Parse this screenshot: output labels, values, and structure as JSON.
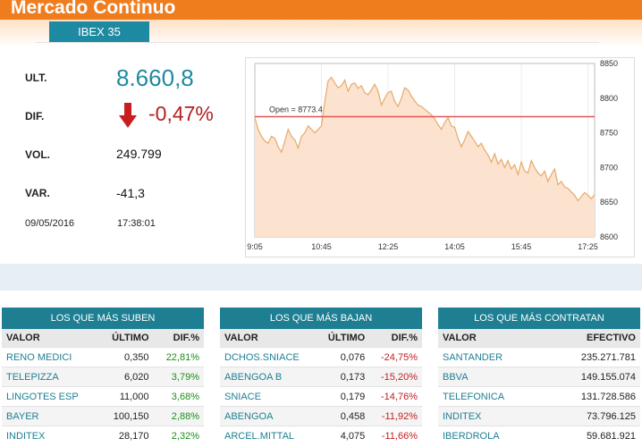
{
  "header": {
    "title": "Mercado Continuo",
    "tab": "IBEX 35"
  },
  "quote": {
    "labels": {
      "last": "ULT.",
      "dif": "DIF.",
      "vol": "VOL.",
      "var": "VAR."
    },
    "last": "8.660,8",
    "dif": "-0,47%",
    "vol": "249.799",
    "var": "-41,3",
    "date": "09/05/2016",
    "time": "17:38:01",
    "colors": {
      "accent": "#1e8aa1",
      "negative": "#b32020",
      "brand": "#f07d1d"
    }
  },
  "chart_data": {
    "type": "area",
    "open_label": "Open = 8773.4",
    "open_value": 8773.4,
    "ylim": [
      8600,
      8850
    ],
    "yticks": [
      "8850",
      "8800",
      "8750",
      "8700",
      "8650",
      "8600"
    ],
    "ytick_values": [
      8850,
      8800,
      8750,
      8700,
      8650,
      8600
    ],
    "xticks": [
      "9:05",
      "10:45",
      "12:25",
      "14:05",
      "15:45",
      "17:25"
    ],
    "xtick_values": [
      0,
      100,
      200,
      300,
      400,
      500
    ],
    "x": [
      0,
      5,
      10,
      15,
      20,
      25,
      30,
      35,
      40,
      45,
      50,
      55,
      60,
      65,
      70,
      75,
      80,
      85,
      90,
      95,
      100,
      105,
      110,
      115,
      120,
      125,
      130,
      135,
      140,
      145,
      150,
      155,
      160,
      165,
      170,
      175,
      180,
      185,
      190,
      195,
      200,
      205,
      210,
      215,
      220,
      225,
      230,
      235,
      240,
      245,
      250,
      255,
      260,
      265,
      270,
      275,
      280,
      285,
      290,
      295,
      300,
      305,
      310,
      315,
      320,
      325,
      330,
      335,
      340,
      345,
      350,
      355,
      360,
      365,
      370,
      375,
      380,
      385,
      390,
      395,
      400,
      405,
      410,
      415,
      420,
      425,
      430,
      435,
      440,
      445,
      450,
      455,
      460,
      465,
      470,
      475,
      480,
      485,
      490,
      495,
      500,
      505,
      510
    ],
    "values": [
      8772,
      8755,
      8745,
      8738,
      8735,
      8745,
      8742,
      8730,
      8722,
      8738,
      8755,
      8745,
      8740,
      8728,
      8745,
      8750,
      8760,
      8755,
      8750,
      8755,
      8760,
      8795,
      8825,
      8830,
      8822,
      8815,
      8818,
      8826,
      8810,
      8820,
      8822,
      8814,
      8818,
      8808,
      8805,
      8812,
      8820,
      8810,
      8790,
      8800,
      8808,
      8810,
      8795,
      8788,
      8800,
      8815,
      8812,
      8803,
      8796,
      8790,
      8788,
      8784,
      8780,
      8776,
      8770,
      8762,
      8755,
      8765,
      8772,
      8760,
      8758,
      8742,
      8730,
      8740,
      8752,
      8745,
      8738,
      8730,
      8735,
      8725,
      8718,
      8708,
      8720,
      8705,
      8712,
      8700,
      8710,
      8698,
      8704,
      8690,
      8708,
      8695,
      8692,
      8710,
      8700,
      8692,
      8688,
      8695,
      8680,
      8690,
      8698,
      8675,
      8680,
      8672,
      8670,
      8665,
      8660,
      8652,
      8658,
      8664,
      8660,
      8655,
      8661
    ]
  },
  "tables": [
    {
      "title": "LOS QUE MÁS SUBEN",
      "headers": [
        "VALOR",
        "ÚLTIMO",
        "DIF.%"
      ],
      "rows": [
        [
          "RENO MEDICI",
          "0,350",
          "22,81%"
        ],
        [
          "TELEPIZZA",
          "6,020",
          "3,79%"
        ],
        [
          "LINGOTES ESP",
          "11,000",
          "3,68%"
        ],
        [
          "BAYER",
          "100,150",
          "2,88%"
        ],
        [
          "INDITEX",
          "28,170",
          "2,32%"
        ]
      ]
    },
    {
      "title": "LOS QUE MÁS BAJAN",
      "headers": [
        "VALOR",
        "ÚLTIMO",
        "DIF.%"
      ],
      "rows": [
        [
          "DCHOS.SNIACE",
          "0,076",
          "-24,75%"
        ],
        [
          "ABENGOA B",
          "0,173",
          "-15,20%"
        ],
        [
          "SNIACE",
          "0,179",
          "-14,76%"
        ],
        [
          "ABENGOA",
          "0,458",
          "-11,92%"
        ],
        [
          "ARCEL.MITTAL",
          "4,075",
          "-11,66%"
        ]
      ]
    },
    {
      "title": "LOS QUE MÁS CONTRATAN",
      "headers": [
        "VALOR",
        "EFECTIVO"
      ],
      "rows": [
        [
          "SANTANDER",
          "235.271.781"
        ],
        [
          "BBVA",
          "149.155.074"
        ],
        [
          "TELEFONICA",
          "131.728.586"
        ],
        [
          "INDITEX",
          "73.796.125"
        ],
        [
          "IBERDROLA",
          "59.681.921"
        ]
      ]
    }
  ]
}
